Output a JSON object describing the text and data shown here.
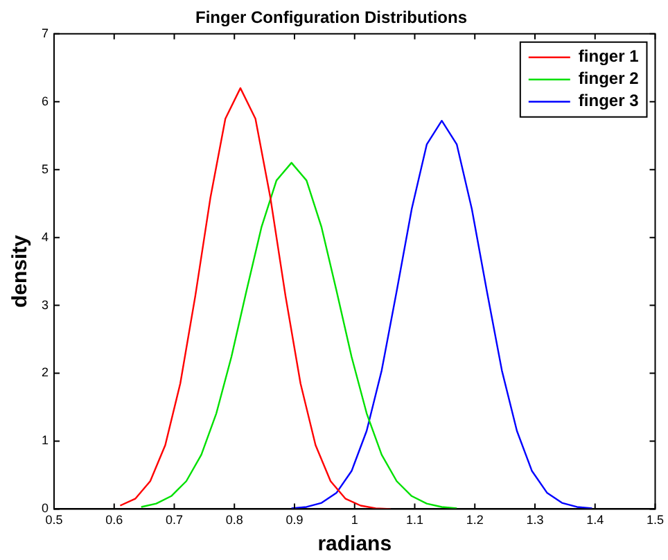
{
  "chart_data": {
    "type": "line",
    "title": "Finger Configuration Distributions",
    "xlabel": "radians",
    "ylabel": "density",
    "xlim": [
      0.5,
      1.5
    ],
    "xticks": [
      0.5,
      0.6,
      0.7,
      0.8,
      0.9,
      1,
      1.1,
      1.2,
      1.3,
      1.4,
      1.5
    ],
    "ylim": [
      0,
      7
    ],
    "yticks": [
      0,
      1,
      2,
      3,
      4,
      5,
      6,
      7
    ],
    "grid": false,
    "legend": "top right",
    "marker": "none",
    "line_style": "solid",
    "series": [
      {
        "name": "finger 1",
        "color": "#ff0000",
        "x": [
          0.61,
          0.635,
          0.66,
          0.685,
          0.71,
          0.735,
          0.76,
          0.785,
          0.81,
          0.835,
          0.86,
          0.885,
          0.91,
          0.935,
          0.96,
          0.985,
          1.01,
          1.035,
          1.06
        ],
        "values": [
          0.05,
          0.15,
          0.41,
          0.94,
          1.85,
          3.14,
          4.58,
          5.75,
          6.2,
          5.75,
          4.58,
          3.14,
          1.85,
          0.94,
          0.41,
          0.15,
          0.05,
          0.01,
          0
        ]
      },
      {
        "name": "finger 2",
        "color": "#00e000",
        "x": [
          0.645,
          0.67,
          0.695,
          0.72,
          0.745,
          0.77,
          0.795,
          0.82,
          0.845,
          0.87,
          0.895,
          0.92,
          0.945,
          0.97,
          0.995,
          1.02,
          1.045,
          1.07,
          1.095,
          1.12,
          1.145,
          1.17
        ],
        "values": [
          0.03,
          0.08,
          0.19,
          0.41,
          0.8,
          1.41,
          2.24,
          3.21,
          4.15,
          4.84,
          5.1,
          4.84,
          4.15,
          3.21,
          2.24,
          1.41,
          0.8,
          0.41,
          0.19,
          0.08,
          0.03,
          0.01
        ]
      },
      {
        "name": "finger 3",
        "color": "#0000ff",
        "x": [
          0.895,
          0.92,
          0.945,
          0.97,
          0.995,
          1.02,
          1.045,
          1.07,
          1.095,
          1.12,
          1.145,
          1.17,
          1.195,
          1.22,
          1.245,
          1.27,
          1.295,
          1.32,
          1.345,
          1.37,
          1.395
        ],
        "values": [
          0.01,
          0.03,
          0.09,
          0.24,
          0.56,
          1.15,
          2.04,
          3.21,
          4.42,
          5.37,
          5.72,
          5.37,
          4.42,
          3.21,
          2.04,
          1.15,
          0.56,
          0.24,
          0.09,
          0.03,
          0.01
        ]
      }
    ]
  }
}
